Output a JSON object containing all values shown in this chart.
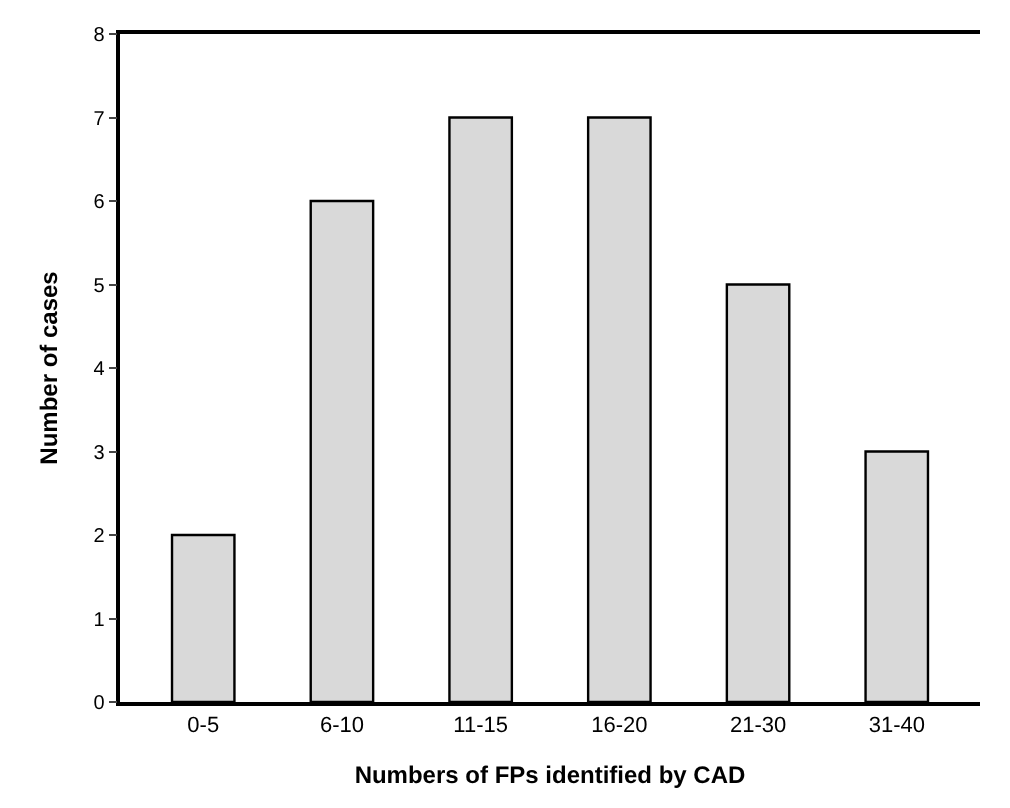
{
  "chart_data": {
    "type": "bar",
    "xlabel": "Numbers of FPs identified by CAD",
    "ylabel": "Number of cases",
    "categories": [
      "0-5",
      "6-10",
      "11-15",
      "16-20",
      "21-30",
      "31-40"
    ],
    "values": [
      2,
      6,
      7,
      7,
      5,
      3
    ],
    "color": "#d9d9d9",
    "ylim": [
      0,
      8
    ],
    "yticks": [
      0,
      1,
      2,
      3,
      4,
      5,
      6,
      7,
      8
    ]
  }
}
